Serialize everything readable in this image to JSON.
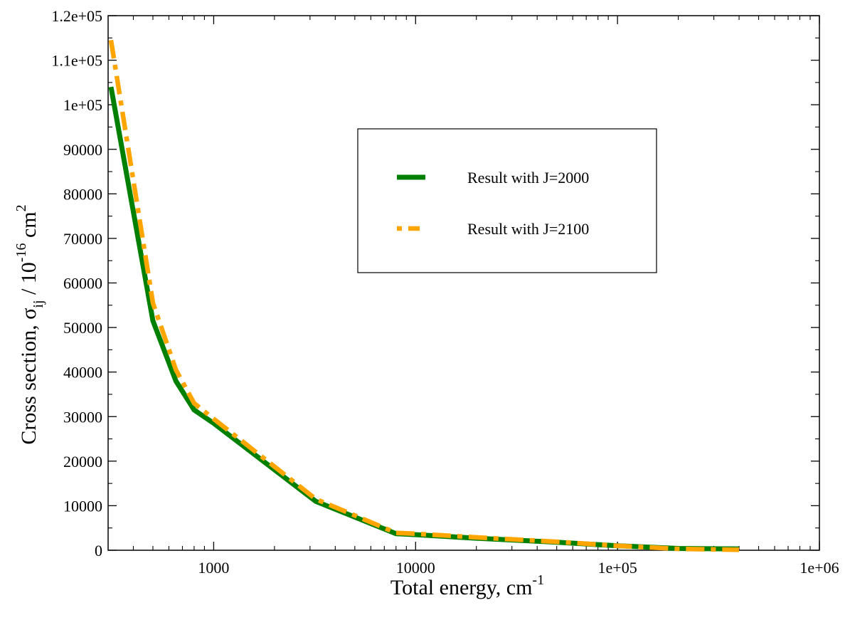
{
  "chart_data": {
    "type": "line",
    "title": "",
    "xlabel": "Total energy, cm",
    "xlabel_superscript": "-1",
    "ylabel": {
      "prefix": "Cross section, σ",
      "subscript": "ij",
      "middle": " / 10",
      "superscript1": "-16",
      "unit": " cm",
      "superscript2": "2"
    },
    "x_scale": "log",
    "xlim": [
      300,
      1000000
    ],
    "ylim": [
      0,
      120000
    ],
    "x_ticks": [
      {
        "value": 1000,
        "label": "1000"
      },
      {
        "value": 10000,
        "label": "10000"
      },
      {
        "value": 100000,
        "label": "1e+05"
      },
      {
        "value": 1000000,
        "label": "1e+06"
      }
    ],
    "y_ticks": [
      {
        "value": 0,
        "label": "0"
      },
      {
        "value": 10000,
        "label": "10000"
      },
      {
        "value": 20000,
        "label": "20000"
      },
      {
        "value": 30000,
        "label": "30000"
      },
      {
        "value": 40000,
        "label": "40000"
      },
      {
        "value": 50000,
        "label": "50000"
      },
      {
        "value": 60000,
        "label": "60000"
      },
      {
        "value": 70000,
        "label": "70000"
      },
      {
        "value": 80000,
        "label": "80000"
      },
      {
        "value": 90000,
        "label": "90000"
      },
      {
        "value": 100000,
        "label": "1e+05"
      },
      {
        "value": 110000,
        "label": "1.1e+05"
      },
      {
        "value": 120000,
        "label": "1.2e+05"
      }
    ],
    "grid": false,
    "legend_position": "top-right",
    "series": [
      {
        "name": "Result with J=2000",
        "color": "#008000",
        "style": "solid",
        "points": [
          [
            310,
            104000
          ],
          [
            500,
            51500
          ],
          [
            650,
            38000
          ],
          [
            800,
            31500
          ],
          [
            1000,
            28500
          ],
          [
            3200,
            11000
          ],
          [
            8000,
            3700
          ],
          [
            10000,
            3500
          ],
          [
            20000,
            2700
          ],
          [
            50000,
            1800
          ],
          [
            100000,
            1000
          ],
          [
            200000,
            400
          ],
          [
            400000,
            300
          ]
        ]
      },
      {
        "name": "Result with J=2100",
        "color": "#FFA500",
        "style": "dash-dot",
        "points": [
          [
            310,
            114500
          ],
          [
            500,
            55500
          ],
          [
            650,
            40500
          ],
          [
            800,
            33000
          ],
          [
            1000,
            29500
          ],
          [
            3200,
            11500
          ],
          [
            8000,
            3900
          ],
          [
            10000,
            3700
          ],
          [
            20000,
            2900
          ],
          [
            50000,
            1900
          ],
          [
            100000,
            1000
          ],
          [
            200000,
            300
          ],
          [
            400000,
            100
          ]
        ]
      }
    ]
  }
}
